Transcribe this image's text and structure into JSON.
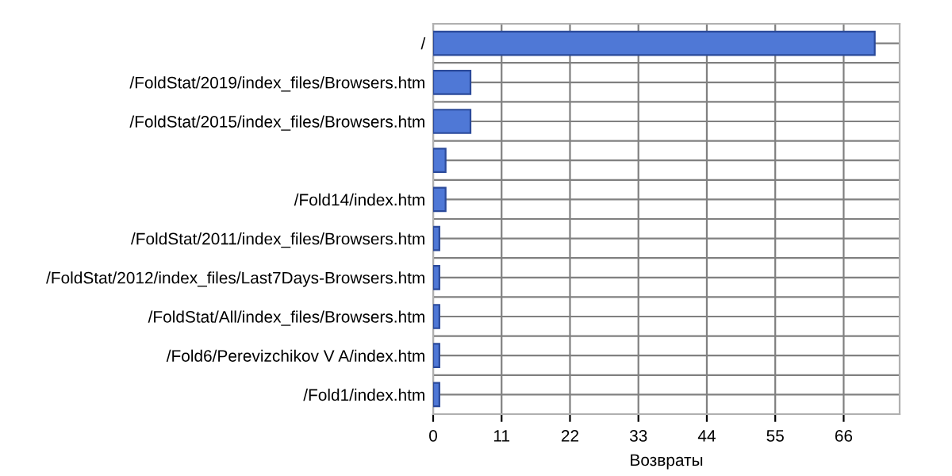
{
  "chart_data": {
    "type": "bar",
    "orientation": "horizontal",
    "xlabel": "Возвраты",
    "categories": [
      "/",
      "/FoldStat/2019/index_files/Browsers.htm",
      "/FoldStat/2015/index_files/Browsers.htm",
      null,
      "/Fold14/index.htm",
      "/FoldStat/2011/index_files/Browsers.htm",
      "/FoldStat/2012/index_files/Last7Days-Browsers.htm",
      "/FoldStat/All/index_files/Browsers.htm",
      "/Fold6/Perevizchikov V A/index.htm",
      "/Fold1/index.htm"
    ],
    "values": [
      71,
      6,
      6,
      2,
      2,
      1,
      1,
      1,
      1,
      1
    ],
    "color": "#4f78d6",
    "xlim": [
      0,
      75
    ],
    "xticks": [
      0,
      11,
      22,
      33,
      44,
      55,
      66
    ],
    "grid": true
  }
}
